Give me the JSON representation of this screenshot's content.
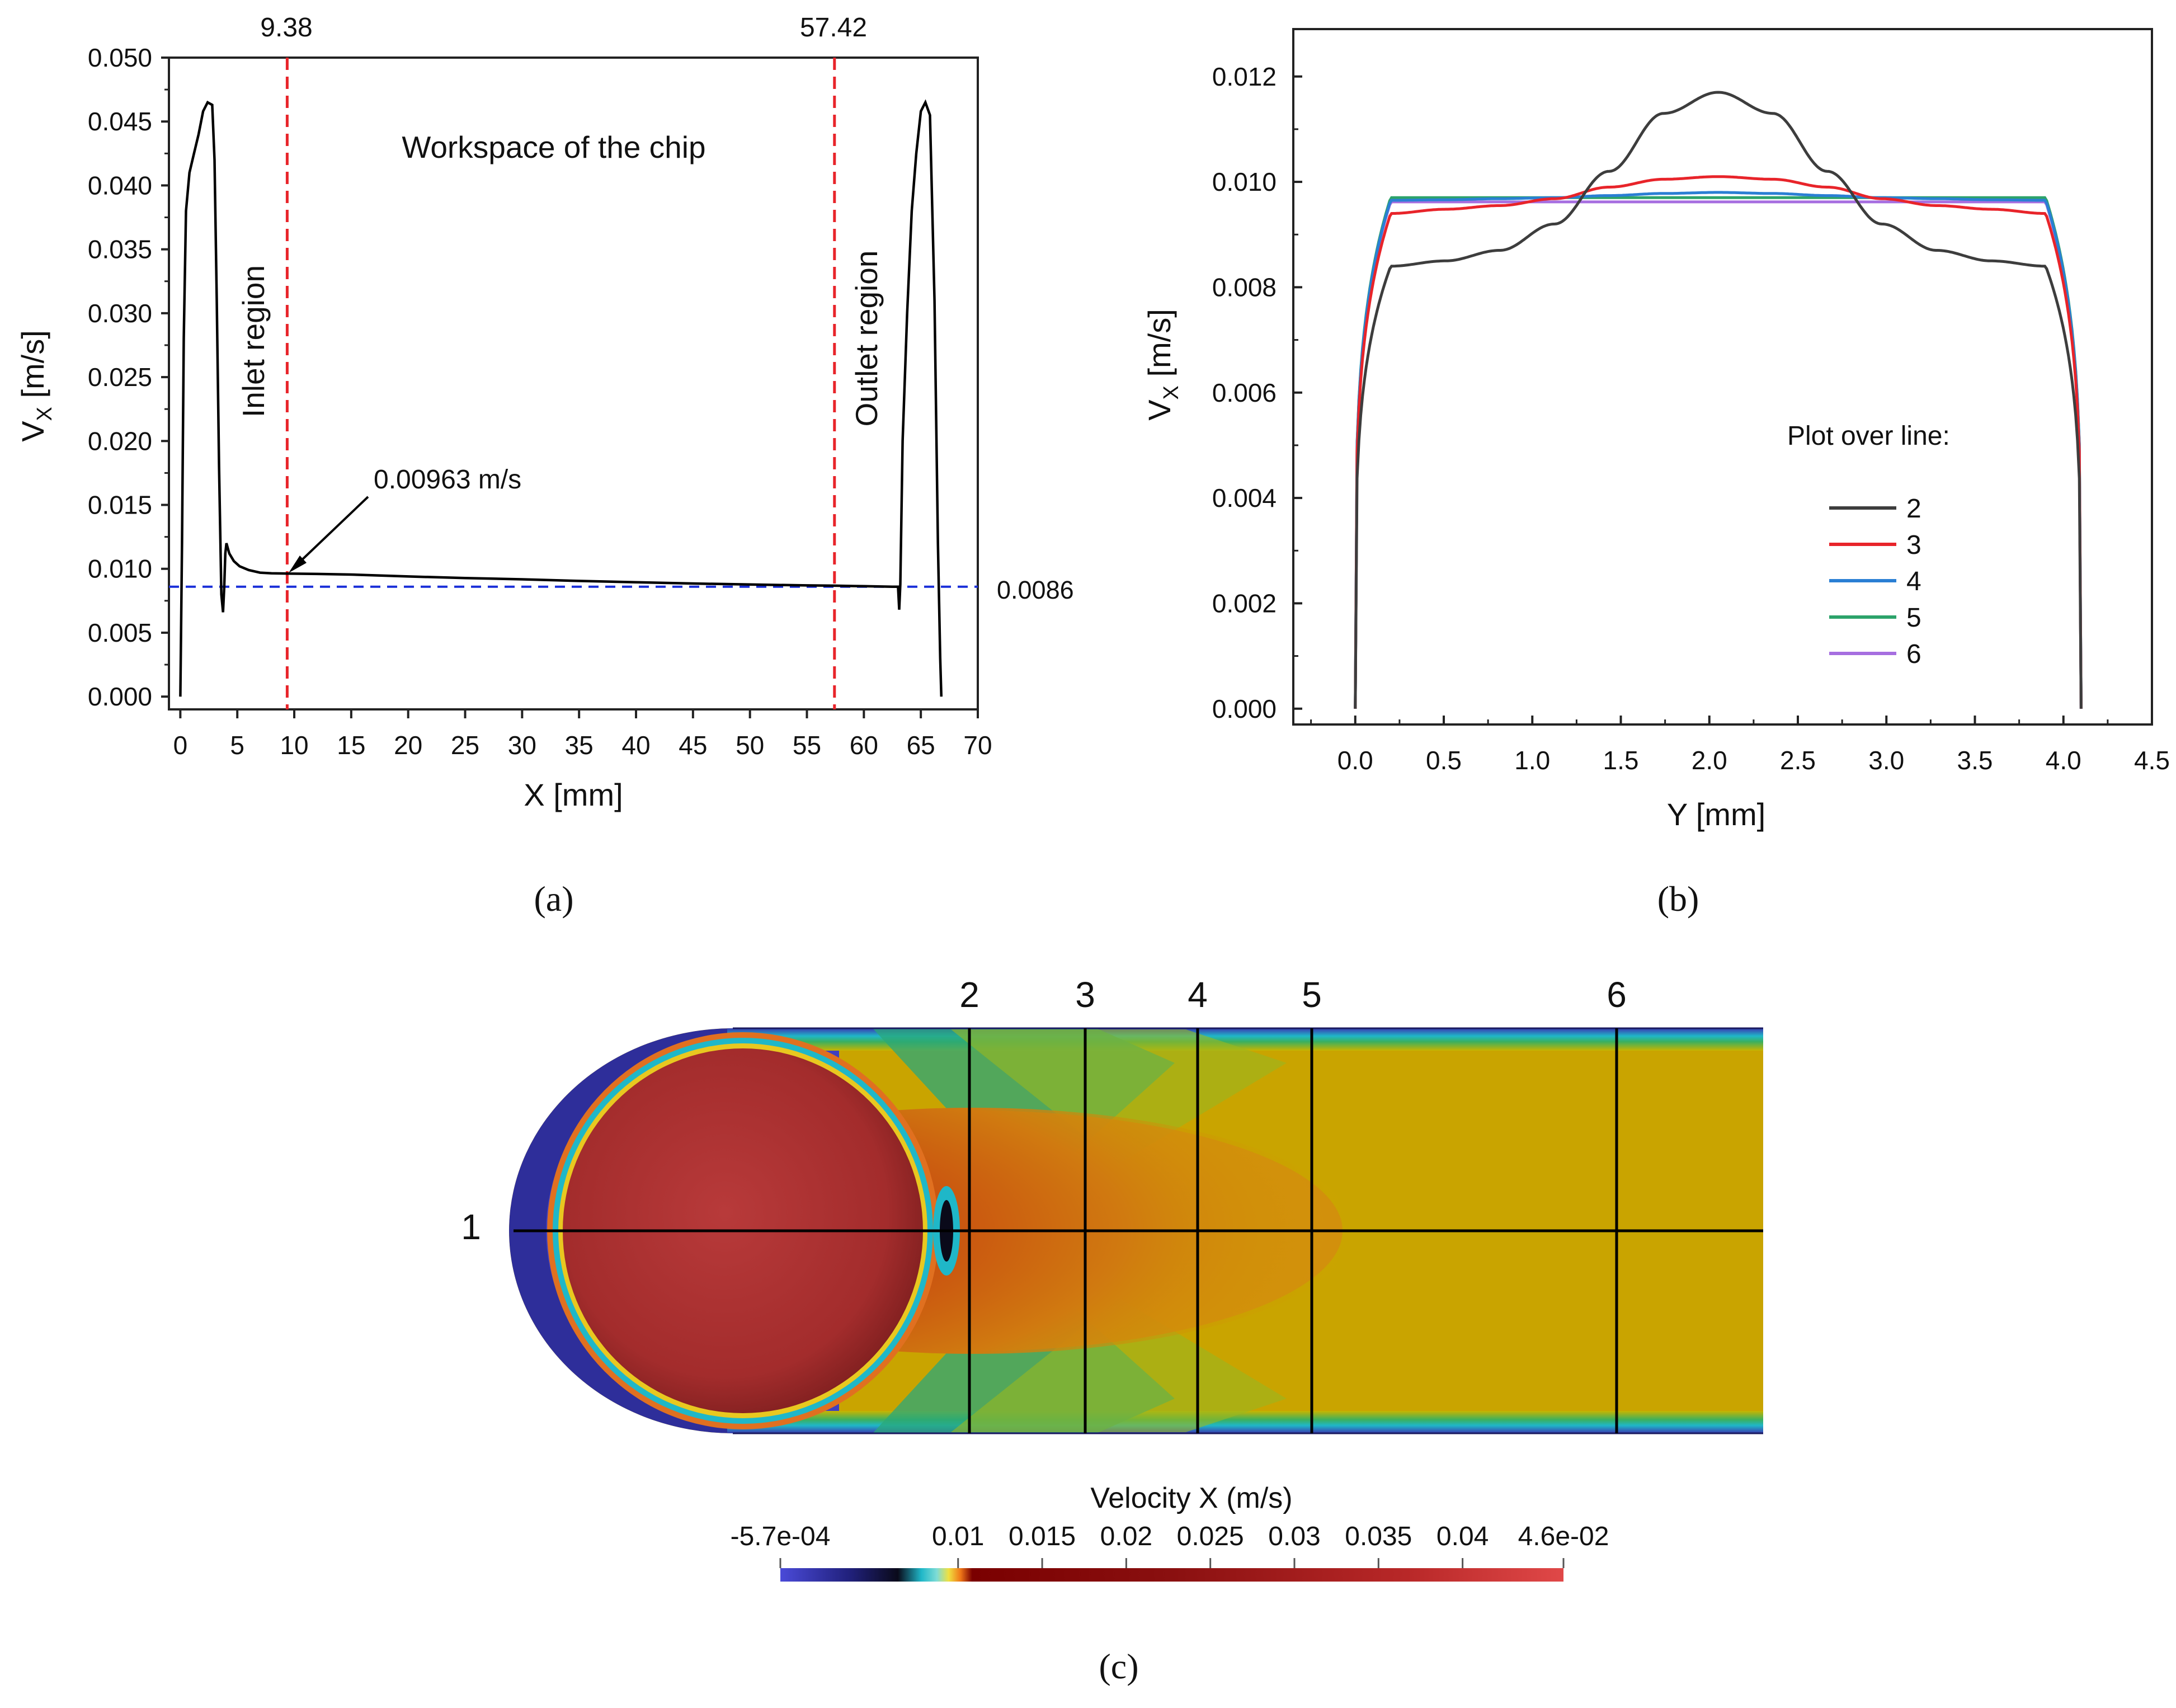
{
  "chart_data": [
    {
      "type": "line",
      "panel": "(a)",
      "xlabel": "X [mm]",
      "ylabel_main": "V",
      "ylabel_sub": "X",
      "ylabel_unit": " [m/s]",
      "xlim": [
        -1,
        70
      ],
      "ylim": [
        -0.001,
        0.05
      ],
      "xticks": [
        "0",
        "5",
        "10",
        "15",
        "20",
        "25",
        "30",
        "35",
        "40",
        "45",
        "50",
        "55",
        "60",
        "65",
        "70"
      ],
      "yticks": [
        "0.000",
        "0.005",
        "0.010",
        "0.015",
        "0.020",
        "0.025",
        "0.030",
        "0.035",
        "0.040",
        "0.045",
        "0.050"
      ],
      "series": [
        {
          "color": "#000000",
          "x": [
            0.0,
            0.15,
            0.3,
            0.5,
            0.8,
            1.2,
            1.6,
            2.0,
            2.4,
            2.8,
            3.0,
            3.2,
            3.4,
            3.6,
            3.75,
            3.85,
            3.95,
            4.05,
            4.3,
            4.7,
            5.2,
            6,
            7,
            8,
            9.38,
            12,
            15,
            20,
            25,
            30,
            35,
            40,
            45,
            50,
            55,
            57.42,
            60,
            62.5,
            63.0,
            63.1,
            63.2,
            63.4,
            63.8,
            64.2,
            64.6,
            65.0,
            65.4,
            65.8,
            66.2,
            66.5,
            66.7,
            66.8
          ],
          "y": [
            0.0,
            0.012,
            0.028,
            0.038,
            0.041,
            0.0425,
            0.044,
            0.0458,
            0.0465,
            0.0463,
            0.042,
            0.031,
            0.018,
            0.008,
            0.0066,
            0.0085,
            0.0112,
            0.012,
            0.0112,
            0.0106,
            0.0102,
            0.0099,
            0.0097,
            0.00965,
            0.00963,
            0.0096,
            0.00955,
            0.0094,
            0.00928,
            0.00918,
            0.00905,
            0.00895,
            0.00885,
            0.00877,
            0.0087,
            0.00868,
            0.00864,
            0.0086,
            0.0086,
            0.0068,
            0.0088,
            0.02,
            0.03,
            0.038,
            0.0425,
            0.0458,
            0.0465,
            0.0455,
            0.031,
            0.012,
            0.003,
            0.0
          ]
        }
      ],
      "vlines": [
        {
          "x": 9.38,
          "label": "9.38",
          "color": "#e8242a",
          "region_label": "Inlet region"
        },
        {
          "x": 57.42,
          "label": "57.42",
          "color": "#e8242a",
          "region_label": "Outlet region"
        }
      ],
      "hline": {
        "y": 0.0086,
        "label": "0.0086",
        "color": "#1a2fd8"
      },
      "annotations": {
        "workspace": "Workspace of the chip",
        "arrow_label": "0.00963 m/s",
        "arrow_target": [
          9.38,
          0.00963
        ]
      }
    },
    {
      "type": "line",
      "panel": "(b)",
      "xlabel": "Y [mm]",
      "ylabel_main": "V",
      "ylabel_sub": "X",
      "ylabel_unit": " [m/s]",
      "xlim": [
        -0.35,
        4.5
      ],
      "ylim": [
        -0.0003,
        0.0129
      ],
      "xticks": [
        "0.0",
        "0.5",
        "1.0",
        "1.5",
        "2.0",
        "2.5",
        "3.0",
        "3.5",
        "4.0",
        "4.5"
      ],
      "yticks": [
        "0.000",
        "0.002",
        "0.004",
        "0.006",
        "0.008",
        "0.010",
        "0.012"
      ],
      "legend_title": "Plot over line:",
      "legend_position": "right-center",
      "series": [
        {
          "name": "2",
          "color": "#3d3d3d",
          "profile": [
            0.0084,
            0.0085,
            0.0087,
            0.0092,
            0.0102,
            0.0113,
            0.0117,
            0.0113,
            0.0102,
            0.0092,
            0.0087,
            0.0085,
            0.0084
          ]
        },
        {
          "name": "3",
          "color": "#e8242a",
          "profile": [
            0.0094,
            0.00948,
            0.00955,
            0.00968,
            0.0099,
            0.01005,
            0.0101,
            0.01005,
            0.0099,
            0.00968,
            0.00955,
            0.00948,
            0.0094
          ]
        },
        {
          "name": "4",
          "color": "#2a7fd4",
          "profile": [
            0.00965,
            0.00966,
            0.00968,
            0.0097,
            0.00974,
            0.00978,
            0.0098,
            0.00978,
            0.00974,
            0.0097,
            0.00968,
            0.00966,
            0.00965
          ]
        },
        {
          "name": "5",
          "color": "#2ca36a",
          "profile": [
            0.0097,
            0.0097,
            0.0097,
            0.0097,
            0.0097,
            0.0097,
            0.0097,
            0.0097,
            0.0097,
            0.0097,
            0.0097,
            0.0097,
            0.0097
          ]
        },
        {
          "name": "6",
          "color": "#a66ee0",
          "profile": [
            0.00962,
            0.00962,
            0.00962,
            0.00962,
            0.00962,
            0.00962,
            0.00962,
            0.00962,
            0.00962,
            0.00962,
            0.00962,
            0.00962,
            0.00962
          ]
        }
      ]
    },
    {
      "type": "heatmap",
      "panel": "(c)",
      "title": "Velocity X (m/s)",
      "colorbar_ticks": [
        "-5.7e-04",
        "0.01",
        "0.015",
        "0.02",
        "0.025",
        "0.03",
        "0.035",
        "0.04",
        "4.6e-02"
      ],
      "colorbar_range": [
        -0.00057,
        0.046
      ],
      "line_labels": [
        "1",
        "2",
        "3",
        "4",
        "5",
        "6"
      ]
    }
  ],
  "captions": {
    "a": "(a)",
    "b": "(b)",
    "c": "(c)"
  }
}
